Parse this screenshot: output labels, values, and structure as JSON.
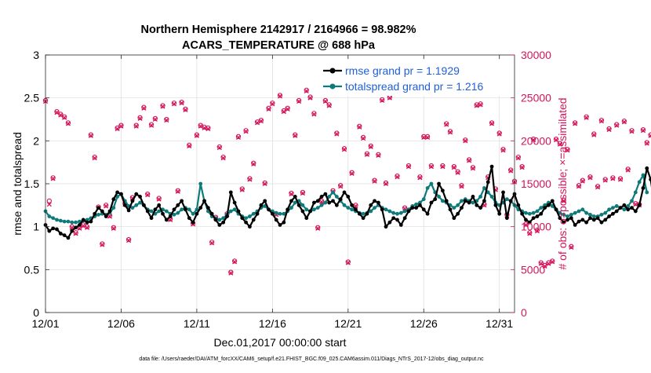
{
  "chart_data": {
    "type": "line",
    "title": "Northern Hemisphere 2142917 / 2164966 = 98.982%",
    "subtitle": "ACARS_TEMPERATURE @ 688 hPa",
    "xlabel": "Dec.01,2017 00:00:00 start",
    "ylabel_left": "rmse and totalspread",
    "ylabel_right": "# of obs: o=possible; ×=assimilated",
    "footer": "data file: /Users/raeder/DAI/ATM_forcXX/CAM6_setup/f.e21.FHIST_BGC.f09_025.CAM6assim.011/Diags_NTrS_2017-12/obs_diag_output.nc",
    "xlim": [
      0,
      31
    ],
    "ylim_left": [
      0,
      3
    ],
    "ylim_right": [
      0,
      30000
    ],
    "x_ticks": [
      0,
      5,
      10,
      15,
      20,
      25,
      30
    ],
    "x_tick_labels": [
      "12/01",
      "12/06",
      "12/11",
      "12/16",
      "12/21",
      "12/26",
      "12/31"
    ],
    "y_ticks_left": [
      "0",
      "0.5",
      "1",
      "1.5",
      "2",
      "2.5",
      "3"
    ],
    "y_ticks_right": [
      "0",
      "5000",
      "10000",
      "15000",
      "20000",
      "25000",
      "30000"
    ],
    "legend_position": "top-right",
    "x_step_days": 0.25,
    "series": [
      {
        "name": "rmse grand pr = 1.1929",
        "axis": "left",
        "color": "#000000",
        "values": [
          1.02,
          0.95,
          0.98,
          0.97,
          0.92,
          0.9,
          0.87,
          0.95,
          0.99,
          1.02,
          1.08,
          1.05,
          1.06,
          1.15,
          1.22,
          1.18,
          1.12,
          1.18,
          1.32,
          1.4,
          1.38,
          1.25,
          1.19,
          1.3,
          1.38,
          1.35,
          1.25,
          1.18,
          1.1,
          1.2,
          1.25,
          1.15,
          1.08,
          1.12,
          1.2,
          1.25,
          1.3,
          1.2,
          1.1,
          1.05,
          1.15,
          1.22,
          1.3,
          1.22,
          1.15,
          1.08,
          1.02,
          1.05,
          1.12,
          1.4,
          1.28,
          1.18,
          1.1,
          1.05,
          1.0,
          1.08,
          1.15,
          1.25,
          1.3,
          1.2,
          1.15,
          1.08,
          1.02,
          1.05,
          1.2,
          1.3,
          1.35,
          1.25,
          1.18,
          1.1,
          1.18,
          1.28,
          1.3,
          1.35,
          1.38,
          1.28,
          1.3,
          1.25,
          1.32,
          1.4,
          1.35,
          1.25,
          1.2,
          1.15,
          1.1,
          1.15,
          1.25,
          1.3,
          1.28,
          1.2,
          1.0,
          1.05,
          1.1,
          1.08,
          1.02,
          1.1,
          1.18,
          1.22,
          1.22,
          1.25,
          1.2,
          1.15,
          1.28,
          1.32,
          1.5,
          1.42,
          1.3,
          1.2,
          1.1,
          1.15,
          1.22,
          1.3,
          1.28,
          1.35,
          1.25,
          1.22,
          1.3,
          1.52,
          1.7,
          1.25,
          1.15,
          1.4,
          1.1,
          1.3,
          1.38,
          1.25,
          1.15,
          1.08,
          1.05,
          1.1,
          1.12,
          1.15,
          1.22,
          1.25,
          1.3,
          1.2,
          1.1,
          1.05,
          1.08,
          1.1,
          1.02,
          1.06,
          1.08,
          1.05,
          1.1,
          1.08,
          1.1,
          1.05,
          1.08,
          1.12,
          1.15,
          1.18,
          1.22,
          1.25,
          1.2,
          1.22,
          1.18,
          1.25,
          1.45,
          1.68,
          1.55,
          1.25
        ]
      },
      {
        "name": "totalspread grand pr = 1.216",
        "axis": "left",
        "color": "#0f7a7a",
        "values": [
          1.18,
          1.12,
          1.1,
          1.08,
          1.07,
          1.06,
          1.06,
          1.05,
          1.05,
          1.06,
          1.07,
          1.08,
          1.1,
          1.12,
          1.14,
          1.15,
          1.14,
          1.16,
          1.22,
          1.35,
          1.38,
          1.3,
          1.24,
          1.22,
          1.25,
          1.28,
          1.25,
          1.2,
          1.18,
          1.15,
          1.18,
          1.2,
          1.18,
          1.15,
          1.14,
          1.16,
          1.2,
          1.22,
          1.2,
          1.15,
          1.2,
          1.5,
          1.3,
          1.18,
          1.12,
          1.1,
          1.08,
          1.1,
          1.14,
          1.18,
          1.2,
          1.15,
          1.12,
          1.1,
          1.12,
          1.15,
          1.18,
          1.22,
          1.24,
          1.2,
          1.18,
          1.16,
          1.15,
          1.15,
          1.18,
          1.22,
          1.28,
          1.3,
          1.25,
          1.2,
          1.18,
          1.2,
          1.22,
          1.25,
          1.28,
          1.35,
          1.4,
          1.35,
          1.3,
          1.25,
          1.22,
          1.2,
          1.18,
          1.16,
          1.15,
          1.16,
          1.18,
          1.22,
          1.25,
          1.22,
          1.2,
          1.18,
          1.16,
          1.15,
          1.16,
          1.18,
          1.2,
          1.24,
          1.26,
          1.28,
          1.32,
          1.45,
          1.5,
          1.4,
          1.35,
          1.3,
          1.28,
          1.25,
          1.22,
          1.25,
          1.3,
          1.32,
          1.3,
          1.28,
          1.3,
          1.35,
          1.45,
          1.4,
          1.35,
          1.28,
          1.25,
          1.28,
          1.32,
          1.3,
          1.25,
          1.2,
          1.18,
          1.16,
          1.15,
          1.16,
          1.18,
          1.22,
          1.25,
          1.28,
          1.24,
          1.2,
          1.16,
          1.14,
          1.12,
          1.14,
          1.16,
          1.18,
          1.2,
          1.16,
          1.14,
          1.12,
          1.12,
          1.14,
          1.16,
          1.2,
          1.22,
          1.24,
          1.22,
          1.2,
          1.24,
          1.3,
          1.4,
          1.52,
          1.6,
          1.4
        ]
      },
      {
        "name": "# obs possible",
        "axis": "right",
        "marker": "circle",
        "color": "#d4145a",
        "values": [
          24700,
          13000,
          15700,
          23400,
          23100,
          22800,
          22100,
          10000,
          9300,
          9900,
          10200,
          10000,
          20700,
          18100,
          12300,
          8000,
          12500,
          11300,
          9900,
          21500,
          21800,
          12700,
          8500,
          13400,
          21800,
          22700,
          23900,
          13800,
          21900,
          22600,
          13300,
          24100,
          22500,
          10900,
          24400,
          14200,
          24500,
          23700,
          19500,
          10400,
          20700,
          21800,
          21600,
          21500,
          8200,
          11100,
          19300,
          18100,
          11500,
          4700,
          6000,
          20500,
          14400,
          21200,
          15600,
          17400,
          22200,
          22400,
          15100,
          23800,
          24400,
          11500,
          25300,
          23500,
          23800,
          13900,
          20700,
          24700,
          14000,
          25900,
          25100,
          23200,
          9900,
          13000,
          24700,
          24200,
          14200,
          20900,
          14800,
          19100,
          5900,
          16300,
          12500,
          21700,
          20400,
          18500,
          19400,
          15400,
          18400,
          24800,
          15100,
          25100,
          25600,
          15900,
          26000,
          12200,
          17100,
          26100,
          27500,
          15800,
          20500,
          20500,
          17100,
          26300,
          25700,
          17100,
          22000,
          21100,
          17000,
          16400,
          14800,
          20100,
          17800,
          16900,
          24200,
          24300,
          12600,
          15800,
          22100,
          14400,
          20900,
          19000,
          11400,
          16600,
          15300,
          18100,
          17000,
          10300,
          9300,
          20200,
          9600,
          5800,
          5500,
          5800,
          6000,
          20200,
          19700,
          13100,
          19000,
          7700,
          22100,
          14800,
          15400,
          22800,
          15800,
          20800,
          14700,
          22400,
          15500,
          21400,
          15700,
          21900,
          15600,
          22300,
          16700,
          21200,
          12700,
          12600,
          21300,
          19800,
          20700,
          12700,
          10000,
          8200,
          20700,
          0
        ]
      },
      {
        "name": "# obs assimilated",
        "axis": "right",
        "marker": "x",
        "color": "#d4145a",
        "values": [
          24600,
          12600,
          15600,
          23300,
          23000,
          22700,
          22000,
          9900,
          9200,
          9800,
          10100,
          9900,
          20600,
          18000,
          12200,
          7900,
          12400,
          11200,
          9800,
          21400,
          21700,
          12600,
          8400,
          13300,
          21700,
          22600,
          23800,
          13700,
          21800,
          22500,
          13200,
          24000,
          22400,
          10800,
          24300,
          14100,
          24400,
          23600,
          19400,
          10300,
          20600,
          21700,
          21500,
          21400,
          8100,
          11000,
          19200,
          18000,
          11400,
          4600,
          5900,
          20400,
          14300,
          21100,
          15500,
          17300,
          22100,
          22300,
          15000,
          23700,
          24300,
          11400,
          25200,
          23400,
          23700,
          13800,
          20600,
          24600,
          13900,
          25800,
          25000,
          23100,
          9800,
          12900,
          24600,
          24100,
          14100,
          20800,
          14700,
          19000,
          5800,
          16200,
          12400,
          21600,
          20300,
          18400,
          19300,
          15300,
          18300,
          24700,
          15000,
          25000,
          25500,
          15800,
          25900,
          12100,
          17000,
          26000,
          27400,
          15700,
          20400,
          20400,
          17000,
          26200,
          25600,
          17000,
          21900,
          21000,
          16900,
          16300,
          14700,
          20000,
          17700,
          16800,
          24100,
          24200,
          12500,
          15700,
          22000,
          14300,
          20800,
          18900,
          11300,
          16500,
          15200,
          18000,
          16900,
          10200,
          9200,
          20100,
          9500,
          5700,
          5400,
          5700,
          5900,
          20100,
          19600,
          13000,
          18900,
          7600,
          22000,
          14700,
          15300,
          22700,
          15700,
          20700,
          14600,
          22300,
          15400,
          21300,
          15600,
          21800,
          15500,
          22200,
          16600,
          21100,
          12600,
          12500,
          21200,
          19700,
          20600,
          12600,
          9900,
          8100,
          20600,
          0
        ]
      }
    ]
  }
}
